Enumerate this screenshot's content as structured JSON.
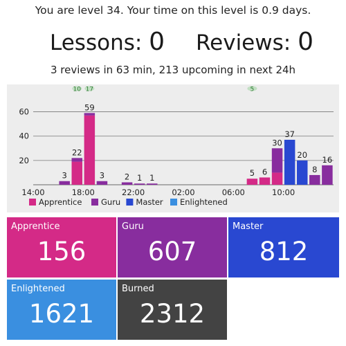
{
  "header": {
    "level_text": "You are level 34. Your time on this level is 0.9 days.",
    "lessons_label": "Lessons:",
    "lessons_count": "0",
    "reviews_label": "Reviews:",
    "reviews_count": "0",
    "upcoming_text": "3 reviews in 63 min, 213 upcoming in next 24h"
  },
  "colors": {
    "apprentice": "#d42a87",
    "guru": "#882d9e",
    "master": "#2948d1",
    "enlightened": "#3a8fe0",
    "burned": "#434343",
    "chart_bg": "#ededed",
    "marker": "#4caf50"
  },
  "chart_data": {
    "type": "bar",
    "stacked": true,
    "title": "",
    "xlabel": "",
    "ylabel": "",
    "ylim": [
      0,
      70
    ],
    "yticks": [
      20,
      40,
      60
    ],
    "grid": true,
    "legend_position": "bottom-left",
    "x_tick_labels": [
      {
        "label": "14:00",
        "hour": 0
      },
      {
        "label": "18:00",
        "hour": 4
      },
      {
        "label": "22:00",
        "hour": 8
      },
      {
        "label": "02:00",
        "hour": 12
      },
      {
        "label": "06:00",
        "hour": 16
      },
      {
        "label": "10:00",
        "hour": 20
      }
    ],
    "series": [
      {
        "name": "Apprentice",
        "color": "#d42a87"
      },
      {
        "name": "Guru",
        "color": "#882d9e"
      },
      {
        "name": "Master",
        "color": "#2948d1"
      },
      {
        "name": "Enlightened",
        "color": "#3a8fe0"
      }
    ],
    "bars": [
      {
        "hour": 2,
        "total": 3,
        "stack": [
          {
            "series": "Guru",
            "value": 3
          }
        ]
      },
      {
        "hour": 3,
        "total": 22,
        "stack": [
          {
            "series": "Apprentice",
            "value": 19
          },
          {
            "series": "Guru",
            "value": 3
          }
        ]
      },
      {
        "hour": 4,
        "total": 59,
        "stack": [
          {
            "series": "Apprentice",
            "value": 57
          },
          {
            "series": "Guru",
            "value": 2
          }
        ]
      },
      {
        "hour": 5,
        "total": 3,
        "stack": [
          {
            "series": "Guru",
            "value": 3
          }
        ]
      },
      {
        "hour": 7,
        "total": 2,
        "stack": [
          {
            "series": "Guru",
            "value": 2
          }
        ]
      },
      {
        "hour": 8,
        "total": 1,
        "stack": [
          {
            "series": "Guru",
            "value": 1
          }
        ]
      },
      {
        "hour": 9,
        "total": 1,
        "stack": [
          {
            "series": "Guru",
            "value": 1
          }
        ]
      },
      {
        "hour": 17,
        "total": 5,
        "stack": [
          {
            "series": "Apprentice",
            "value": 5
          }
        ]
      },
      {
        "hour": 18,
        "total": 6,
        "stack": [
          {
            "series": "Apprentice",
            "value": 6
          }
        ]
      },
      {
        "hour": 19,
        "total": 30,
        "stack": [
          {
            "series": "Apprentice",
            "value": 10
          },
          {
            "series": "Guru",
            "value": 20
          }
        ]
      },
      {
        "hour": 20,
        "total": 37,
        "stack": [
          {
            "series": "Master",
            "value": 37
          }
        ]
      },
      {
        "hour": 21,
        "total": 20,
        "stack": [
          {
            "series": "Master",
            "value": 20
          }
        ]
      },
      {
        "hour": 22,
        "total": 8,
        "stack": [
          {
            "series": "Guru",
            "value": 8
          }
        ]
      },
      {
        "hour": 23,
        "total": 16,
        "stack": [
          {
            "series": "Guru",
            "value": 16
          }
        ]
      }
    ],
    "level_markers": [
      {
        "hour": 3,
        "label": "10"
      },
      {
        "hour": 4,
        "label": "17"
      },
      {
        "hour": 17,
        "label": "5"
      }
    ]
  },
  "tiles": [
    {
      "key": "apprentice",
      "label": "Apprentice",
      "value": "156",
      "color": "#d42a87"
    },
    {
      "key": "guru",
      "label": "Guru",
      "value": "607",
      "color": "#882d9e"
    },
    {
      "key": "master",
      "label": "Master",
      "value": "812",
      "color": "#2948d1"
    },
    {
      "key": "enlightened",
      "label": "Enlightened",
      "value": "1621",
      "color": "#3a8fe0"
    },
    {
      "key": "burned",
      "label": "Burned",
      "value": "2312",
      "color": "#434343"
    }
  ]
}
